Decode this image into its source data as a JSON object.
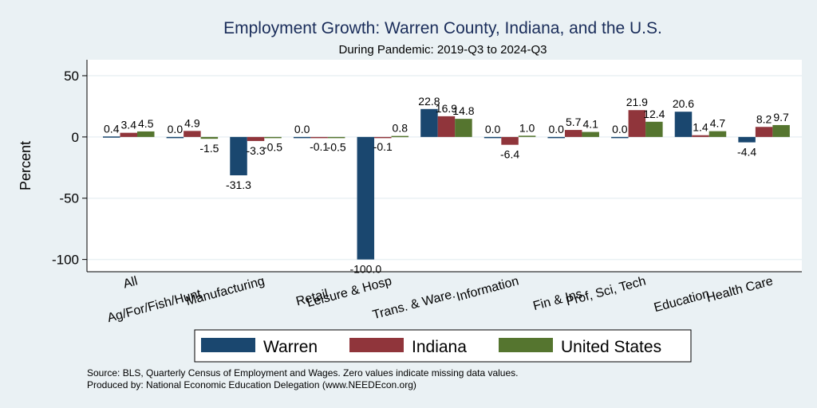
{
  "chart_data": {
    "type": "bar",
    "title": "Employment Growth: Warren County, Indiana, and the U.S.",
    "subtitle": "During Pandemic: 2019-Q3 to 2024-Q3",
    "xlabel": "",
    "ylabel": "Percent",
    "ylim": [
      -110,
      63
    ],
    "yticks": [
      50,
      0,
      -50,
      -100
    ],
    "grid": true,
    "legend_position": "bottom",
    "categories": [
      "All",
      "Ag/For/Fish/Hunt",
      "Manufacturing",
      "Retail",
      "Leisure & Hosp",
      "Trans. & Ware.",
      "Information",
      "Fin & Ins",
      "Prof, Sci, Tech",
      "Education",
      "Health Care"
    ],
    "series": [
      {
        "name": "Warren",
        "color": "#1a476f",
        "values": [
          0.4,
          0.0,
          -31.3,
          0.0,
          -100.0,
          22.8,
          0.0,
          0.0,
          0.0,
          20.6,
          -4.4
        ]
      },
      {
        "name": "Indiana",
        "color": "#90353b",
        "values": [
          3.4,
          4.9,
          -3.3,
          -0.1,
          -0.1,
          16.9,
          -6.4,
          5.7,
          21.9,
          1.4,
          8.2
        ]
      },
      {
        "name": "United States",
        "color": "#55752f",
        "values": [
          4.5,
          -1.5,
          -0.5,
          -0.5,
          0.8,
          14.8,
          1.0,
          4.1,
          12.4,
          4.7,
          9.7
        ]
      }
    ],
    "notes": [
      "Source: BLS, Quarterly Census of Employment and Wages. Zero values indicate missing data values.",
      "Produced by: National Economic Education Delegation (www.NEEDEcon.org)"
    ]
  }
}
